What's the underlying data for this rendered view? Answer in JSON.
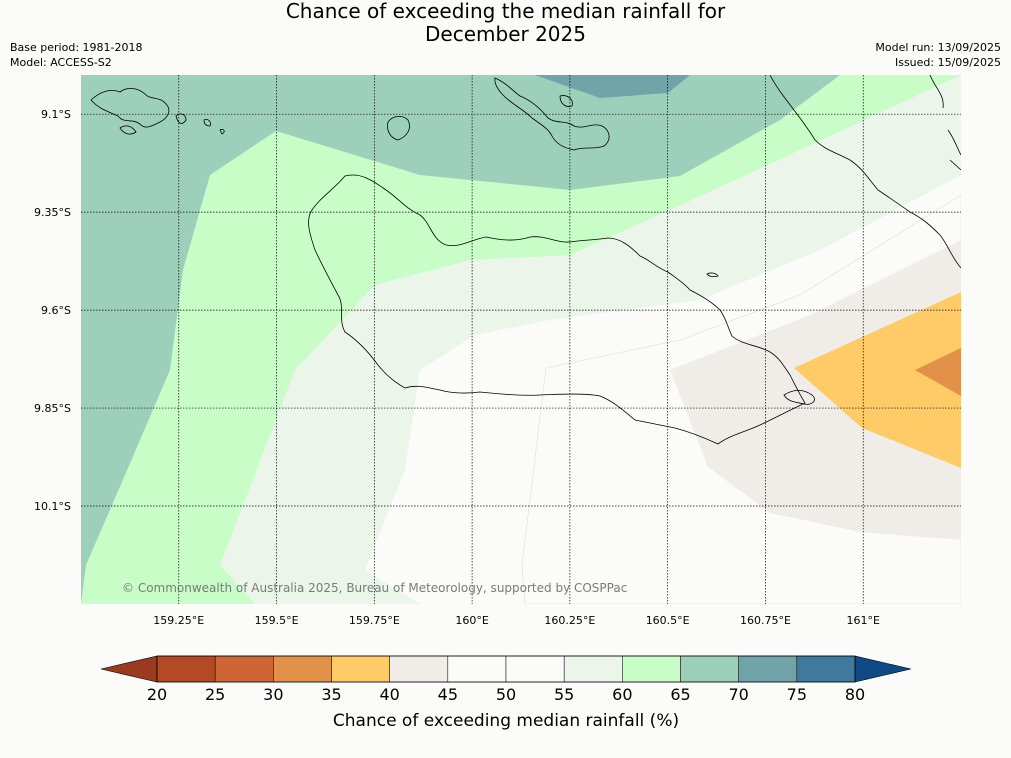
{
  "title_line1": "Chance of exceeding the median rainfall for",
  "title_line2": "December 2025",
  "meta_left": [
    "Base period: 1981-2018",
    "Model: ACCESS-S2"
  ],
  "meta_right": [
    "Model run: 13/09/2025",
    "Issued: 15/09/2025"
  ],
  "credit": "© Commonwealth of Australia 2025, Bureau of Meteorology, supported by COSPPac",
  "map": {
    "lon_range": [
      159.0,
      161.25
    ],
    "lat_range": [
      -10.35,
      -9.0
    ],
    "lat_ticks": [
      {
        "value": -9.1,
        "label": "9.1°S"
      },
      {
        "value": -9.35,
        "label": "9.35°S"
      },
      {
        "value": -9.6,
        "label": "9.6°S"
      },
      {
        "value": -9.85,
        "label": "9.85°S"
      },
      {
        "value": -10.1,
        "label": "10.1°S"
      }
    ],
    "lon_ticks": [
      {
        "value": 159.25,
        "label": "159.25°E"
      },
      {
        "value": 159.5,
        "label": "159.5°E"
      },
      {
        "value": 159.75,
        "label": "159.75°E"
      },
      {
        "value": 160.0,
        "label": "160°E"
      },
      {
        "value": 160.25,
        "label": "160.25°E"
      },
      {
        "value": 160.5,
        "label": "160.5°E"
      },
      {
        "value": 160.75,
        "label": "160.75°E"
      },
      {
        "value": 161.0,
        "label": "161°E"
      }
    ],
    "gridlines": true
  },
  "colorbar": {
    "label": "Chance of exceeding median rainfall (%)",
    "ticks": [
      "20",
      "25",
      "30",
      "35",
      "40",
      "45",
      "50",
      "55",
      "60",
      "65",
      "70",
      "75",
      "80"
    ],
    "under_color": "#9c3a20",
    "over_color": "#0f4a86",
    "bins": [
      {
        "range": "20-25",
        "color": "#b34a24"
      },
      {
        "range": "25-30",
        "color": "#cf6434"
      },
      {
        "range": "30-35",
        "color": "#e19148"
      },
      {
        "range": "35-40",
        "color": "#fecb67"
      },
      {
        "range": "40-45",
        "color": "#f0ede8"
      },
      {
        "range": "45-50",
        "color": "#fbfcfa"
      },
      {
        "range": "50-55",
        "color": "#fbfcfa"
      },
      {
        "range": "55-60",
        "color": "#ebf5ea"
      },
      {
        "range": "60-65",
        "color": "#c8fdc8"
      },
      {
        "range": "65-70",
        "color": "#9dd0bb"
      },
      {
        "range": "70-75",
        "color": "#70a4a8"
      },
      {
        "range": "75-80",
        "color": "#3f7a9c"
      }
    ]
  }
}
